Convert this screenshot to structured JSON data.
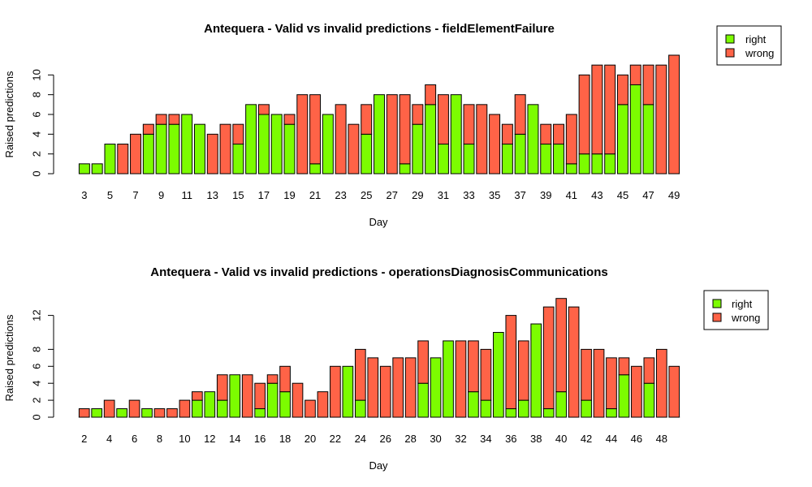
{
  "chart_data": [
    {
      "type": "bar",
      "stacked": true,
      "title": "Antequera - Valid vs invalid predictions - fieldElementFailure",
      "xlabel": "Day",
      "ylabel": "Raised predictions",
      "ylim": [
        0,
        12
      ],
      "y_ticks": [
        0,
        2,
        4,
        6,
        8,
        10
      ],
      "categories": [
        "3",
        "4",
        "5",
        "6",
        "7",
        "8",
        "9",
        "10",
        "11",
        "12",
        "13",
        "14",
        "15",
        "16",
        "17",
        "18",
        "19",
        "20",
        "21",
        "22",
        "23",
        "24",
        "25",
        "26",
        "27",
        "28",
        "29",
        "30",
        "31",
        "32",
        "33",
        "34",
        "35",
        "36",
        "37",
        "38",
        "39",
        "40",
        "41",
        "42",
        "43",
        "44",
        "45",
        "46",
        "47",
        "48",
        "49"
      ],
      "x_tick_labels": [
        "3",
        "5",
        "7",
        "9",
        "11",
        "13",
        "15",
        "17",
        "19",
        "21",
        "23",
        "25",
        "27",
        "29",
        "31",
        "33",
        "35",
        "37",
        "39",
        "41",
        "43",
        "45",
        "47",
        "49"
      ],
      "series": [
        {
          "name": "right",
          "color": "#7CFC00",
          "values": [
            1,
            1,
            3,
            0,
            0,
            4,
            5,
            5,
            6,
            5,
            0,
            0,
            3,
            7,
            6,
            6,
            5,
            0,
            1,
            6,
            0,
            0,
            4,
            8,
            0,
            1,
            5,
            7,
            3,
            8,
            3,
            0,
            0,
            3,
            4,
            7,
            3,
            3,
            1,
            2,
            2,
            2,
            7,
            9,
            7,
            0,
            0
          ]
        },
        {
          "name": "wrong",
          "color": "#FF6347",
          "values": [
            0,
            0,
            0,
            3,
            4,
            1,
            1,
            1,
            0,
            0,
            4,
            5,
            2,
            0,
            1,
            0,
            1,
            8,
            7,
            0,
            7,
            5,
            3,
            0,
            8,
            7,
            2,
            2,
            5,
            0,
            4,
            7,
            6,
            2,
            4,
            0,
            2,
            2,
            5,
            8,
            9,
            9,
            3,
            2,
            4,
            11,
            12
          ]
        }
      ],
      "legend": {
        "position": "top-right",
        "entries": [
          "right",
          "wrong"
        ]
      }
    },
    {
      "type": "bar",
      "stacked": true,
      "title": "Antequera - Valid vs invalid predictions - operationsDiagnosisCommunications",
      "xlabel": "Day",
      "ylabel": "Raised predictions",
      "ylim": [
        0,
        14
      ],
      "y_ticks": [
        0,
        2,
        4,
        6,
        8,
        12
      ],
      "categories": [
        "2",
        "3",
        "4",
        "5",
        "6",
        "7",
        "8",
        "9",
        "10",
        "11",
        "12",
        "13",
        "14",
        "15",
        "16",
        "17",
        "18",
        "19",
        "20",
        "21",
        "22",
        "23",
        "24",
        "25",
        "26",
        "27",
        "28",
        "29",
        "30",
        "31",
        "32",
        "33",
        "34",
        "35",
        "36",
        "37",
        "38",
        "39",
        "40",
        "41",
        "42",
        "43",
        "44",
        "45",
        "46",
        "47",
        "48",
        "49"
      ],
      "x_tick_labels": [
        "2",
        "4",
        "6",
        "8",
        "10",
        "12",
        "14",
        "16",
        "18",
        "20",
        "22",
        "24",
        "26",
        "28",
        "30",
        "32",
        "34",
        "36",
        "38",
        "40",
        "42",
        "44",
        "46",
        "48"
      ],
      "series": [
        {
          "name": "right",
          "color": "#7CFC00",
          "values": [
            0,
            1,
            0,
            1,
            0,
            1,
            0,
            0,
            0,
            2,
            3,
            2,
            5,
            0,
            1,
            4,
            3,
            0,
            0,
            0,
            0,
            6,
            2,
            0,
            0,
            0,
            0,
            4,
            7,
            9,
            0,
            3,
            2,
            10,
            1,
            2,
            11,
            1,
            3,
            0,
            2,
            0,
            1,
            5,
            0,
            4,
            0,
            0
          ]
        },
        {
          "name": "wrong",
          "color": "#FF6347",
          "values": [
            1,
            0,
            2,
            0,
            2,
            0,
            1,
            1,
            2,
            1,
            0,
            3,
            0,
            5,
            3,
            1,
            3,
            4,
            2,
            3,
            6,
            0,
            6,
            7,
            6,
            7,
            7,
            5,
            0,
            0,
            9,
            6,
            6,
            0,
            11,
            7,
            0,
            12,
            11,
            13,
            6,
            8,
            6,
            2,
            6,
            3,
            8,
            6
          ]
        }
      ],
      "legend": {
        "position": "top-right",
        "entries": [
          "right",
          "wrong"
        ]
      }
    }
  ]
}
